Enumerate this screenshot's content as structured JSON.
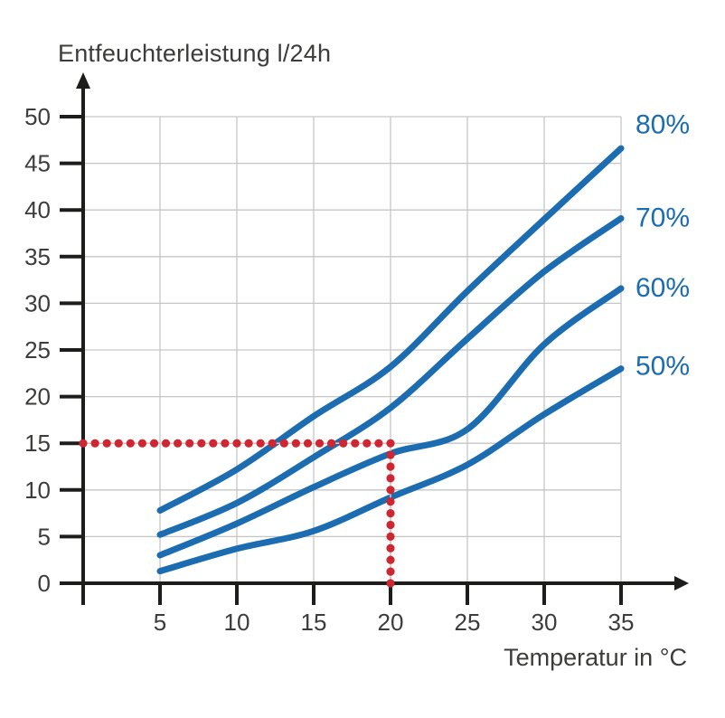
{
  "chart_data": {
    "type": "line",
    "title": "Entfeuchterleistung l/24h",
    "xlabel": "Temperatur in °C",
    "ylabel": "Entfeuchterleistung l/24h",
    "x_unit": "°C",
    "y_unit": "l/24h",
    "xlim": [
      0,
      39
    ],
    "ylim": [
      0,
      54
    ],
    "x_ticks": [
      5,
      10,
      15,
      20,
      25,
      30,
      35
    ],
    "y_ticks": [
      0,
      5,
      10,
      15,
      20,
      25,
      30,
      35,
      40,
      45,
      50
    ],
    "grid": true,
    "legend_position": "right-outside",
    "series": [
      {
        "label": "80%",
        "label_at_y": 49.2,
        "x": [
          5,
          10,
          15,
          20,
          25,
          30,
          35
        ],
        "values": [
          7.8,
          12.2,
          17.9,
          23.2,
          31.3,
          39.0,
          46.6
        ]
      },
      {
        "label": "70%",
        "label_at_y": 39.2,
        "x": [
          5,
          10,
          15,
          20,
          25,
          30,
          35
        ],
        "values": [
          5.2,
          8.6,
          13.5,
          18.8,
          26.2,
          33.4,
          39.1
        ]
      },
      {
        "label": "60%",
        "label_at_y": 31.7,
        "x": [
          5,
          10,
          15,
          20,
          25,
          30,
          35
        ],
        "values": [
          3.0,
          6.4,
          10.3,
          13.9,
          16.5,
          25.6,
          31.6
        ]
      },
      {
        "label": "50%",
        "label_at_y": 23.3,
        "x": [
          5,
          10,
          15,
          20,
          25,
          30,
          35
        ],
        "values": [
          1.3,
          3.7,
          5.6,
          9.2,
          12.7,
          18.1,
          23.0
        ]
      }
    ],
    "guide_lines": {
      "x_value": 20,
      "y_value": 15,
      "style": "dotted"
    },
    "colors": {
      "curve_blue": "#1b6cb0",
      "guide_red": "#cd2731",
      "guide_pink_line": "#f0b9bb",
      "axis_black": "#1d1d1b",
      "text_gray": "#3c3c3b",
      "grid_gray": "#c6c6c6",
      "background": "#ffffff"
    }
  }
}
